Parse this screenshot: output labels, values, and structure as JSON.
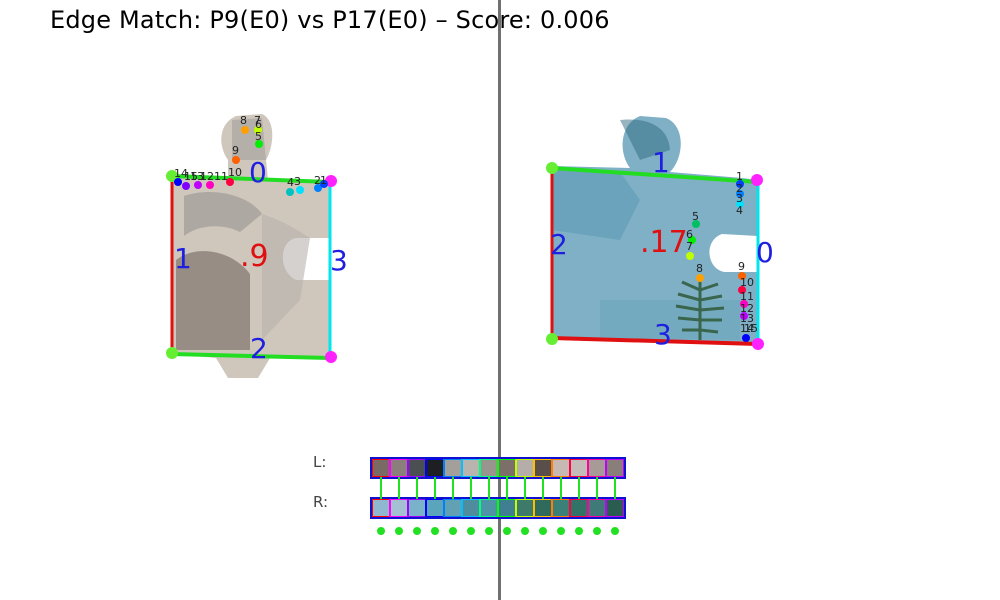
{
  "title": "Edge Match: P9(E0) vs P17(E0) – Score: 0.006",
  "left_piece": {
    "id_label": ".9",
    "edge_labels": [
      "0",
      "1",
      "2",
      "3"
    ],
    "point_labels": [
      "14",
      "15",
      "13",
      "12",
      "11",
      "10",
      "9",
      "8",
      "7",
      "6",
      "5",
      "4",
      "3",
      "2",
      "1"
    ]
  },
  "right_piece": {
    "id_label": ".17",
    "edge_labels": [
      "0",
      "1",
      "2",
      "3"
    ],
    "point_labels": [
      "1",
      "2",
      "3",
      "4",
      "5",
      "6",
      "7",
      "8",
      "9",
      "10",
      "11",
      "12",
      "13",
      "14",
      "15"
    ]
  },
  "strip": {
    "l_label": "L:",
    "r_label": "R:",
    "left_colors": [
      "#7a6a66",
      "#8a7f7a",
      "#4a4f52",
      "#1d1f22",
      "#a3a09c",
      "#b9b4ad",
      "#9a948e",
      "#7c6e68",
      "#b5aea8",
      "#5a4e4a",
      "#c8b8b4",
      "#c4bcb8",
      "#a89a96",
      "#8a7e7a"
    ],
    "right_colors": [
      "#8fb7cf",
      "#a4c1d4",
      "#7ab3c9",
      "#5aa4bc",
      "#62a0b4",
      "#4f8c9e",
      "#4f93a6",
      "#3f7f92",
      "#3d7a6a",
      "#2f6a5c",
      "#3a7f78",
      "#2f7466",
      "#3f7a78",
      "#2a5c50"
    ],
    "frame_colors": [
      "#ff0000",
      "#ff00ff",
      "#a000ff",
      "#0000ff",
      "#0080ff",
      "#00c0ff",
      "#00ff80",
      "#00ff00",
      "#c0ff00",
      "#ffc000",
      "#ff8000",
      "#ff0040",
      "#ff00a0",
      "#c000ff"
    ],
    "match_dot_color": "#22e022"
  }
}
